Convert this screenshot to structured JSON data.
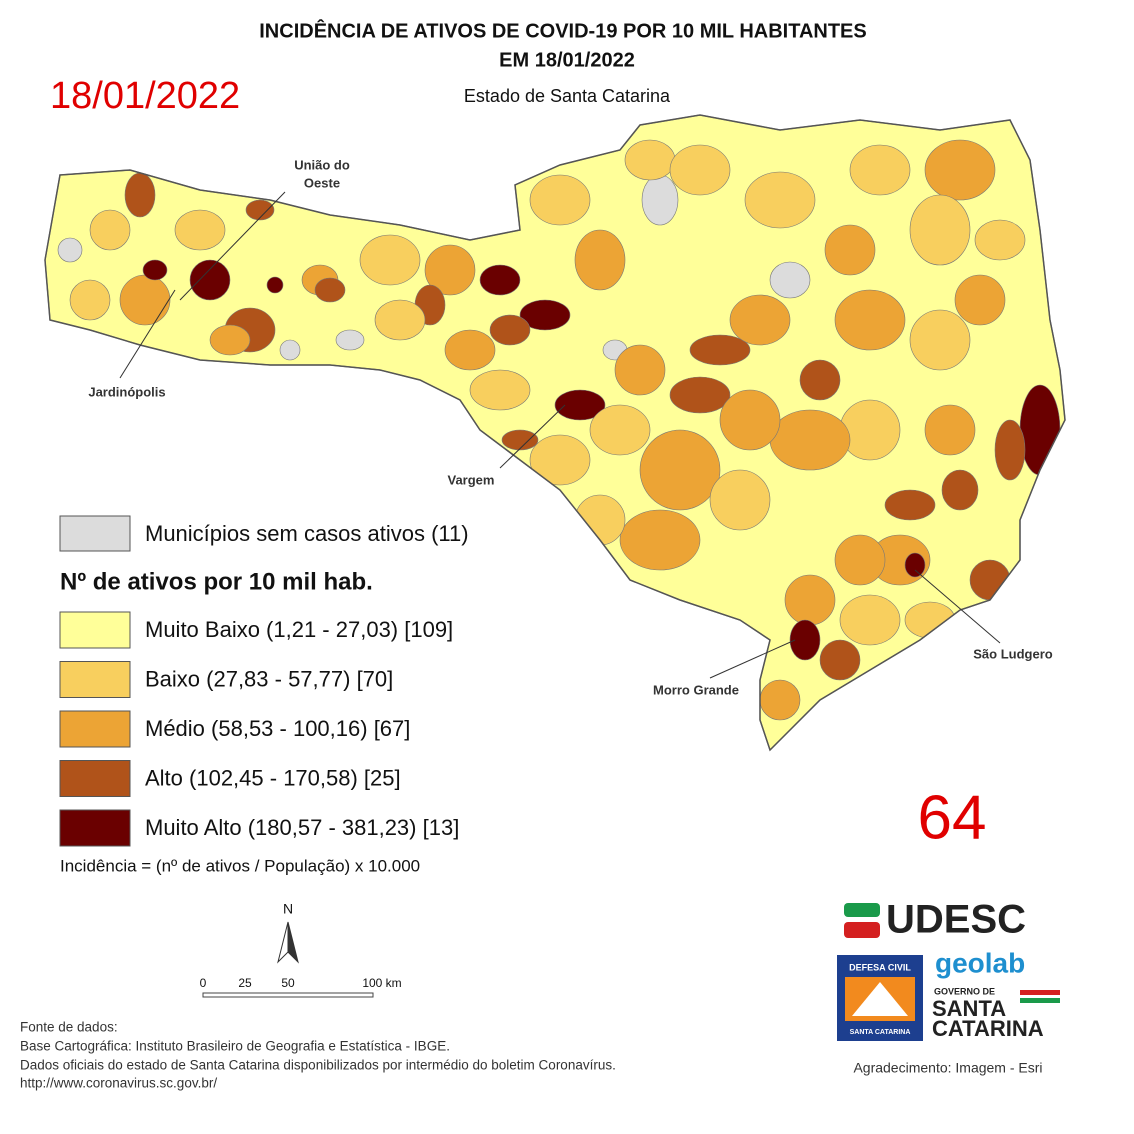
{
  "header": {
    "title_lines": [
      "INCIDÊNCIA DE ATIVOS DE COVID-19 POR 10 MIL HABITANTES",
      "EM 18/01/2022"
    ],
    "subtitle": "Estado de Santa Catarina",
    "date": "18/01/2022"
  },
  "map_labels": {
    "uniao_do_oeste": [
      "União do",
      "Oeste"
    ],
    "jardinopolis": "Jardinópolis",
    "vargem": "Vargem",
    "morro_grande": "Morro Grande",
    "sao_ludgero": "São Ludgero"
  },
  "legend": {
    "no_cases": {
      "label": "Municípios sem casos ativos (11)",
      "color": "#dcdcdc"
    },
    "heading": "Nº de ativos por 10 mil hab.",
    "classes": [
      {
        "label": "Muito Baixo (1,21 - 27,03) [109]",
        "color": "#ffff99"
      },
      {
        "label": "Baixo (27,83 - 57,77) [70]",
        "color": "#f8cf5e"
      },
      {
        "label": "Médio (58,53 - 100,16) [67]",
        "color": "#eca435"
      },
      {
        "label": "Alto (102,45 - 170,58) [25]",
        "color": "#b0531a"
      },
      {
        "label": "Muito Alto (180,57 - 381,23) [13]",
        "color": "#6a0000"
      }
    ],
    "formula": "Incidência = (nº de ativos / População) x 10.000"
  },
  "counter": "64",
  "scale_bar": {
    "north": "N",
    "ticks": [
      "0",
      "25",
      "50",
      "100 km"
    ]
  },
  "sources": [
    "Fonte de dados:",
    "Base Cartográfica: Instituto Brasileiro de Geografia e Estatística - IBGE.",
    "Dados oficiais do estado de Santa Catarina disponibilizados por intermédio do boletim Coronavírus.",
    "http://www.coronavirus.sc.gov.br/"
  ],
  "logos": {
    "udesc": "UDESC",
    "geolab": "geolab",
    "defesa_civil_top": "DEFESA CIVIL",
    "defesa_civil_bottom": "SANTA CATARINA",
    "governo_de": "GOVERNO DE",
    "governo_santa": "SANTA",
    "governo_catarina": "CATARINA"
  },
  "credit": "Agradecimento: Imagem - Esri"
}
